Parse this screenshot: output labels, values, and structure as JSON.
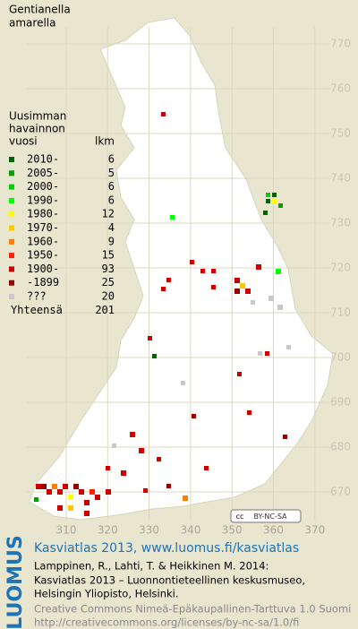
{
  "title": [
    "Gentianella",
    "amarella"
  ],
  "legend": {
    "heading": [
      "Uusimman",
      "havainnon",
      "vuosi"
    ],
    "count_heading": "lkm",
    "rows": [
      {
        "label": "2010-",
        "count": 6,
        "color": "#006400"
      },
      {
        "label": "2005-",
        "count": 5,
        "color": "#00a000"
      },
      {
        "label": "2000-",
        "count": 6,
        "color": "#00d000"
      },
      {
        "label": "1990-",
        "count": 6,
        "color": "#00ff00"
      },
      {
        "label": "1980-",
        "count": 12,
        "color": "#ffff00"
      },
      {
        "label": "1970-",
        "count": 4,
        "color": "#ffc800"
      },
      {
        "label": "1960-",
        "count": 9,
        "color": "#ff8000"
      },
      {
        "label": "1950-",
        "count": 15,
        "color": "#ff2000"
      },
      {
        "label": "1900-",
        "count": 93,
        "color": "#cc0000"
      },
      {
        "label": "-1899",
        "count": 25,
        "color": "#990000"
      },
      {
        "label": "???",
        "count": 20,
        "color": "#c8c8c8"
      }
    ],
    "total_label": "Yhteensä",
    "total": 201
  },
  "map": {
    "y_labels": [
      "770",
      "760",
      "750",
      "740",
      "730",
      "720",
      "710",
      "700",
      "690",
      "680",
      "670"
    ],
    "x_labels": [
      "310",
      "320",
      "330",
      "340",
      "350",
      "360",
      "370"
    ]
  },
  "license_badge": [
    "cc",
    "BY-NC-SA"
  ],
  "footer": {
    "brand": "LUOMUS",
    "headline": "Kasviatlas 2013, www.luomus.fi/kasviatlas",
    "citation": [
      "Lamppinen, R., Lahti, T. & Heikkinen M. 2014:",
      "Kasviatlas 2013 – Luonnontieteellinen keskusmuseo,",
      "Helsingin Yliopisto, Helsinki."
    ],
    "license": [
      "Creative Commons Nimeä-Epäkaupallinen-Tarttuva 1.0 Suomi",
      "http://creativecommons.org/licenses/by-nc-sa/1.0/fi"
    ]
  }
}
